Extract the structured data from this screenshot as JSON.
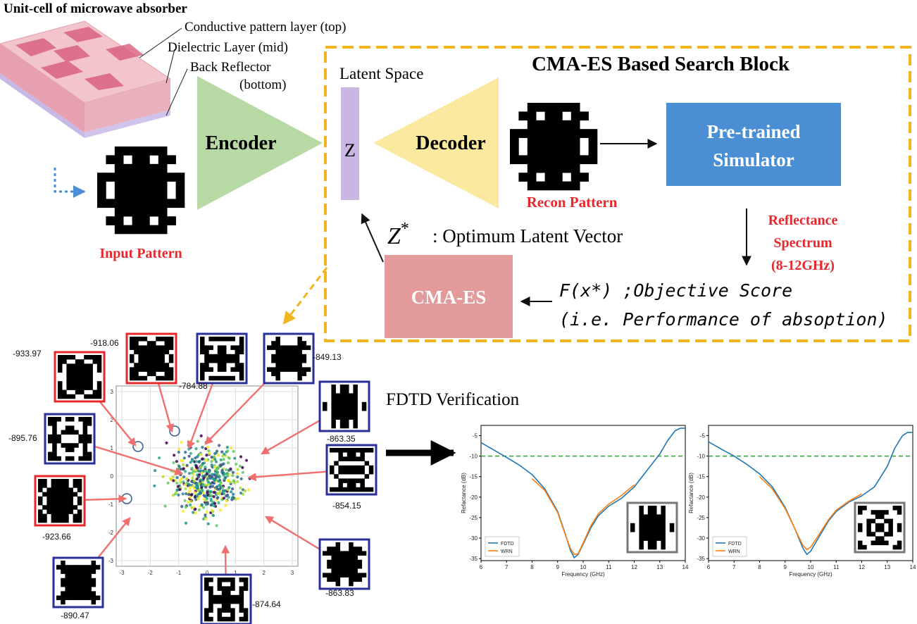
{
  "unit_cell": {
    "title": "Unit-cell of microwave absorber",
    "layer_top": "Conductive pattern layer (top)",
    "layer_mid": "Dielectric Layer (mid)",
    "layer_bottom_1": "Back Reflector",
    "layer_bottom_2": "(bottom)"
  },
  "input_pattern_label": "Input Pattern",
  "encoder_label": "Encoder",
  "search_block": {
    "title": "CMA-ES Based Search Block",
    "latent_space_label": "Latent Space",
    "z_label": "Z",
    "decoder_label": "Decoder",
    "recon_label": "Recon Pattern",
    "simulator_line1": "Pre-trained",
    "simulator_line2": "Simulator",
    "reflectance_line1": "Reflectance",
    "reflectance_line2": "Spectrum",
    "reflectance_line3": "(8-12GHz)",
    "z_star": "Z",
    "z_star_sup": "*",
    "optimum_label": ": Optimum Latent Vector",
    "cmaes_label": "CMA-ES",
    "objective_line1": "F(x*) ;Objective Score",
    "objective_line2": "(i.e. Performance of absoption)"
  },
  "latent_plot": {
    "x_ticks": [
      "-3",
      "-2",
      "-1",
      "0",
      "1",
      "2",
      "3"
    ],
    "y_ticks": [
      "3",
      "2",
      "1",
      "0",
      "-1",
      "-2",
      "-3"
    ],
    "score_labels": [
      "-933.97",
      "-918.06",
      "-784.88",
      "-849.13",
      "-895.76",
      "-863.35",
      "-854.15",
      "-923.66",
      "-863.83",
      "-874.64",
      "-890.47"
    ]
  },
  "fdtd": {
    "title": "FDTD Verification",
    "ylabel": "Refactance (dB)",
    "xlabel": "Frequency (GHz)",
    "legend_fdtd": "FDTD",
    "legend_wrn": "WRN"
  },
  "chart_data": [
    {
      "type": "line",
      "xlabel": "Frequency (GHz)",
      "ylabel": "Refactance (dB)",
      "xlim": [
        6,
        14
      ],
      "ylim": [
        -35.5,
        -2.5
      ],
      "x_ticks": [
        6,
        7,
        8,
        9,
        10,
        11,
        12,
        13,
        14
      ],
      "y_ticks": [
        -5,
        -10,
        -15,
        -20,
        -25,
        -30,
        -35
      ],
      "threshold": -10,
      "legend_placement": "bottom-left",
      "series": [
        {
          "name": "FDTD",
          "color": "#1f77b4",
          "x": [
            6,
            6.5,
            7,
            7.5,
            8,
            8.5,
            9,
            9.3,
            9.5,
            9.65,
            9.8,
            10,
            10.3,
            10.6,
            11,
            11.5,
            12,
            12.5,
            13,
            13.3,
            13.6,
            13.8,
            14
          ],
          "y": [
            -6.7,
            -8.5,
            -10.3,
            -12.2,
            -14.5,
            -18,
            -23.5,
            -29,
            -33,
            -34.8,
            -34,
            -31.5,
            -27.5,
            -24.5,
            -22.2,
            -20.3,
            -17.5,
            -13.5,
            -9.5,
            -6.3,
            -3.8,
            -3.2,
            -3.2
          ]
        },
        {
          "name": "WRN",
          "color": "#ff7f0e",
          "x": [
            8,
            8.5,
            9,
            9.3,
            9.5,
            9.65,
            9.8,
            10,
            10.3,
            10.6,
            11,
            11.5,
            12
          ],
          "y": [
            -15.5,
            -18.4,
            -23.8,
            -29.2,
            -32.5,
            -34.0,
            -33.8,
            -31.2,
            -27,
            -24,
            -21.7,
            -19.6,
            -17
          ]
        }
      ]
    },
    {
      "type": "line",
      "xlabel": "Frequency (GHz)",
      "ylabel": "Refactance (dB)",
      "xlim": [
        6,
        14
      ],
      "ylim": [
        -35.5,
        -2.5
      ],
      "x_ticks": [
        6,
        7,
        8,
        9,
        10,
        11,
        12,
        13,
        14
      ],
      "y_ticks": [
        -5,
        -10,
        -15,
        -20,
        -25,
        -30,
        -35
      ],
      "threshold": -10,
      "legend_placement": "bottom-left",
      "series": [
        {
          "name": "FDTD",
          "color": "#1f77b4",
          "x": [
            6,
            6.5,
            7,
            7.5,
            8,
            8.5,
            9,
            9.4,
            9.7,
            9.85,
            10,
            10.3,
            10.7,
            11,
            11.5,
            12,
            12.5,
            13,
            13.3,
            13.6,
            13.8,
            14
          ],
          "y": [
            -6.5,
            -8.3,
            -10,
            -12,
            -14.3,
            -17.5,
            -22.5,
            -28,
            -32.5,
            -34,
            -33.2,
            -30,
            -25.8,
            -23.5,
            -21.2,
            -19.7,
            -17.5,
            -12.5,
            -8,
            -5,
            -4.2,
            -4.2
          ]
        },
        {
          "name": "WRN",
          "color": "#ff7f0e",
          "x": [
            8,
            8.5,
            9,
            9.4,
            9.7,
            9.85,
            10,
            10.3,
            10.7,
            11,
            11.5,
            12
          ],
          "y": [
            -15,
            -18,
            -22.8,
            -28,
            -31.8,
            -32.8,
            -32.2,
            -29.4,
            -25.5,
            -23.2,
            -21,
            -19.2
          ]
        }
      ]
    }
  ],
  "colors": {
    "red_label": "#e8272c",
    "orange_dash": "#f2b51f",
    "encoder_green": "#b7d9a3",
    "decoder_yellow": "#fce9a0",
    "simulator_blue": "#4a8fd4",
    "cmaes_pink": "#e29a9a",
    "latent_purple": "#c9b6e2",
    "threshold_green": "#2ca02c"
  }
}
